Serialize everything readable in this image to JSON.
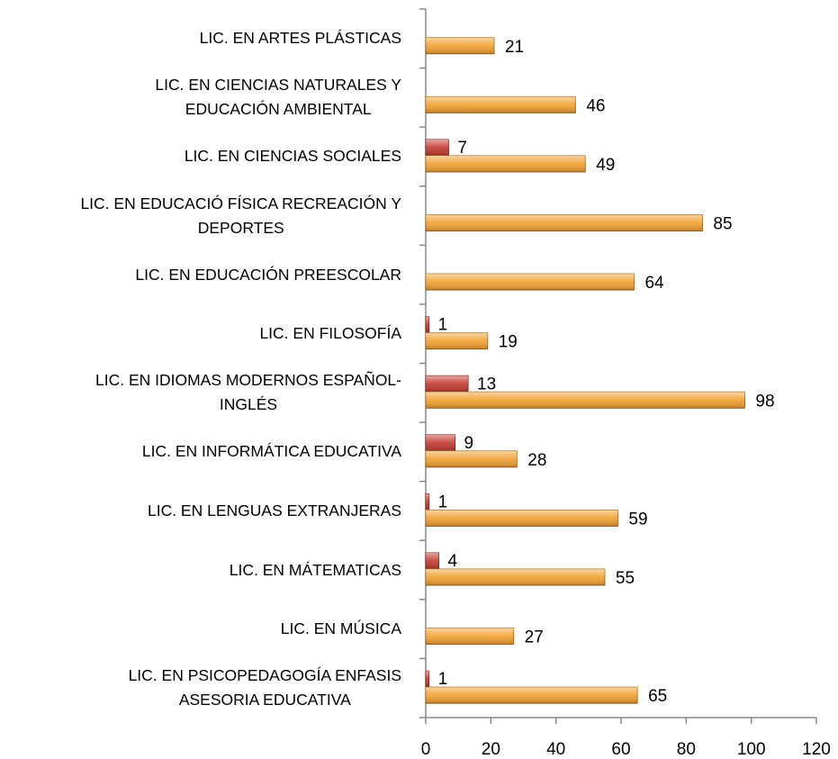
{
  "chart_data": {
    "type": "bar",
    "orientation": "horizontal",
    "categories": [
      "LIC. EN ARTES PLÁSTICAS",
      "LIC. EN CIENCIAS NATURALES Y\nEDUCACIÓN AMBIENTAL",
      "LIC. EN CIENCIAS SOCIALES",
      "LIC. EN EDUCACIÓ FÍSICA RECREACIÓN Y\nDEPORTES",
      "LIC. EN EDUCACIÓN PREESCOLAR",
      "LIC. EN FILOSOFÍA",
      "LIC. EN IDIOMAS MODERNOS ESPAÑOL-\nINGLÉS",
      "LIC. EN INFORMÁTICA EDUCATIVA",
      "LIC. EN LENGUAS EXTRANJERAS",
      "LIC. EN MÁTEMATICAS",
      "LIC. EN MÚSICA",
      "LIC. EN PSICOPEDAGOGÍA ENFASIS\nASESORIA EDUCATIVA"
    ],
    "series": [
      {
        "color": "#c0392f",
        "values": [
          null,
          null,
          7,
          null,
          null,
          1,
          13,
          9,
          1,
          4,
          null,
          1
        ]
      },
      {
        "color": "#f0a030",
        "values": [
          21,
          46,
          49,
          85,
          64,
          19,
          98,
          28,
          59,
          55,
          27,
          65
        ]
      }
    ],
    "xlim": [
      0,
      120
    ],
    "xticks": [
      0,
      20,
      40,
      60,
      80,
      100,
      120
    ],
    "grid": false
  }
}
